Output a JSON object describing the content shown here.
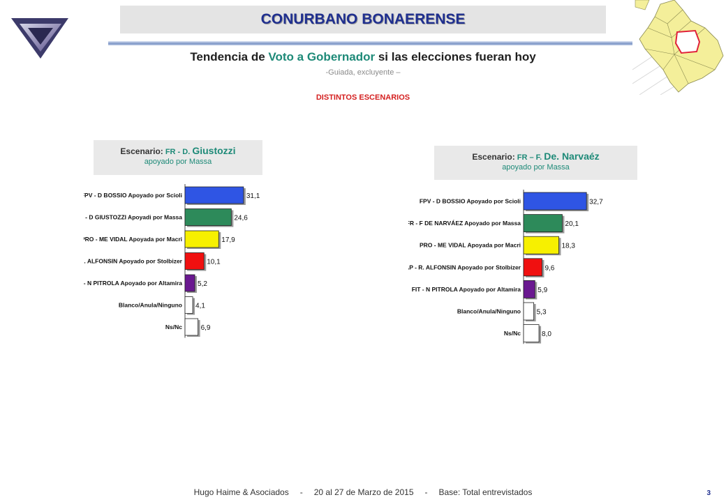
{
  "header": {
    "title": "CONURBANO BONAERENSE"
  },
  "title": {
    "part1": "Tendencia de ",
    "hl1": "Voto a Gobernador",
    "part2": " si las elecciones fueran hoy"
  },
  "subtitle": "-Guiada, excluyente –",
  "scenarios_label": "DISTINTOS ESCENARIOS",
  "colors": {
    "fpv": "#2f55e4",
    "fr": "#2d8a5a",
    "pro": "#f7f000",
    "fap": "#f01010",
    "fit": "#6a1890",
    "blank": "#ffffff",
    "accent": "#1e8a78",
    "header": "#1f2f8f"
  },
  "scenario_left": {
    "label": "Escenario:",
    "prefix": " FR - D. ",
    "name": "Giustozzi",
    "line2": "apoyado por Massa"
  },
  "scenario_right": {
    "label": "Escenario:",
    "prefix": " FR – F. ",
    "name": "De. Narvaéz",
    "line2": "apoyado por Massa"
  },
  "chart_data": [
    {
      "type": "bar",
      "orientation": "horizontal",
      "categories": [
        "FPV - D BOSSIO Apoyado por Scioli",
        "FR - D GIUSTOZZI Apoyadi por Massa",
        "PRO - ME VIDAL Apoyada por Macri",
        "FAP - R. ALFONSIN Apoyado por Stolbizer",
        "FIT - N PITROLA Apoyado por Altamira",
        "Blanco/Anula/Ninguno",
        "Ns/Nc"
      ],
      "values": [
        31.1,
        24.6,
        17.9,
        10.1,
        5.2,
        4.1,
        6.9
      ],
      "value_labels": [
        "31,1",
        "24,6",
        "17,9",
        "10,1",
        "5,2",
        "4,1",
        "6,9"
      ],
      "colors": [
        "fpv",
        "fr",
        "pro",
        "fap",
        "fit",
        "blank",
        "blank"
      ],
      "xlim": [
        0,
        33
      ]
    },
    {
      "type": "bar",
      "orientation": "horizontal",
      "categories": [
        "FPV - D BOSSIO Apoyado por Scioli",
        "FR - F DE NARVÁEZ Apoyado por Massa",
        "PRO - ME VIDAL Apoyada por Macri",
        "FAP - R. ALFONSIN Apoyado por Stolbizer",
        "FIT - N PITROLA Apoyado por Altamira",
        "Blanco/Anula/Ninguno",
        "Ns/Nc"
      ],
      "values": [
        32.7,
        20.1,
        18.3,
        9.6,
        5.9,
        5.3,
        8.0
      ],
      "value_labels": [
        "32,7",
        "20,1",
        "18,3",
        "9,6",
        "5,9",
        "5,3",
        "8,0"
      ],
      "colors": [
        "fpv",
        "fr",
        "pro",
        "fap",
        "fit",
        "blank",
        "blank"
      ],
      "xlim": [
        0,
        33
      ]
    }
  ],
  "footer": {
    "company": "Hugo Haime & Asociados",
    "dates": "20 al 27  de  Marzo de  2015",
    "base": "Base: Total entrevistados",
    "sep": "-"
  },
  "page_number": "3"
}
